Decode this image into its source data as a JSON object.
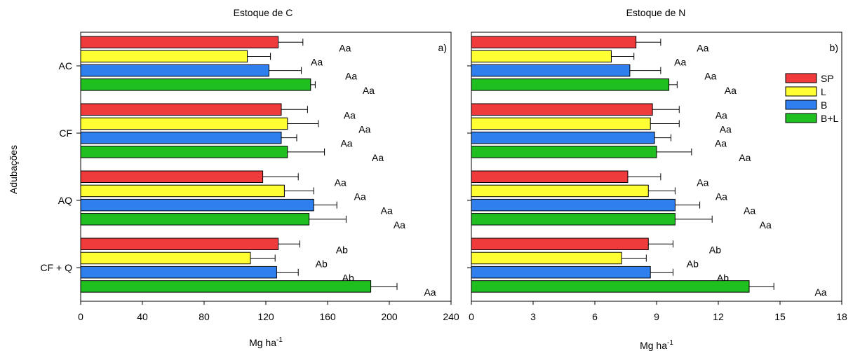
{
  "ylabel": "Adubações",
  "colors": {
    "SP": "#ef3b3b",
    "L": "#ffff33",
    "B": "#2f7fef",
    "B+L": "#1fbf1f"
  },
  "legend": {
    "placement": "top-right of panel b",
    "entries": [
      "SP",
      "L",
      "B",
      "B+L"
    ]
  },
  "chart_data": [
    {
      "type": "bar",
      "orientation": "horizontal",
      "title": "Estoque de C",
      "panel_label": "a)",
      "xlabel_main": "Mg ha",
      "xlabel_sup": "-1",
      "xlim": [
        0,
        240
      ],
      "xticks": [
        "0",
        "40",
        "80",
        "120",
        "160",
        "200",
        "240"
      ],
      "categories": [
        "AC",
        "CF",
        "AQ",
        "CF + Q"
      ],
      "series": [
        {
          "name": "SP",
          "values": [
            128,
            130,
            118,
            128
          ],
          "errors": [
            16,
            17,
            23,
            14
          ],
          "labels": [
            "Aa",
            "Aa",
            "Aa",
            "Ab"
          ]
        },
        {
          "name": "L",
          "values": [
            108,
            134,
            132,
            110
          ],
          "errors": [
            15,
            20,
            19,
            16
          ],
          "labels": [
            "Aa",
            "Aa",
            "Aa",
            "Ab"
          ]
        },
        {
          "name": "B",
          "values": [
            122,
            130,
            151,
            127
          ],
          "errors": [
            21,
            10,
            15,
            14
          ],
          "labels": [
            "Aa",
            "Aa",
            "Aa",
            "Ab"
          ]
        },
        {
          "name": "B+L",
          "values": [
            149,
            134,
            148,
            188
          ],
          "errors": [
            3,
            24,
            24,
            17
          ],
          "labels": [
            "Aa",
            "Aa",
            "Aa",
            "Aa"
          ]
        }
      ]
    },
    {
      "type": "bar",
      "orientation": "horizontal",
      "title": "Estoque de N",
      "panel_label": "b)",
      "xlabel_main": "Mg ha",
      "xlabel_sup": "-1",
      "xlim": [
        0,
        18
      ],
      "xticks": [
        "0",
        "3",
        "6",
        "9",
        "12",
        "15",
        "18"
      ],
      "categories": [
        "AC",
        "CF",
        "AQ",
        "CF + Q"
      ],
      "series": [
        {
          "name": "SP",
          "values": [
            8.0,
            8.8,
            7.6,
            8.6
          ],
          "errors": [
            1.2,
            1.3,
            1.6,
            1.2
          ],
          "labels": [
            "Aa",
            "Aa",
            "Aa",
            "Ab"
          ]
        },
        {
          "name": "L",
          "values": [
            6.8,
            8.7,
            8.6,
            7.3
          ],
          "errors": [
            1.1,
            1.4,
            1.3,
            1.2
          ],
          "labels": [
            "Aa",
            "Aa",
            "Aa",
            "Ab"
          ]
        },
        {
          "name": "B",
          "values": [
            7.7,
            8.9,
            9.9,
            8.7
          ],
          "errors": [
            1.5,
            0.8,
            1.2,
            1.1
          ],
          "labels": [
            "Aa",
            "Aa",
            "Aa",
            "Ab"
          ]
        },
        {
          "name": "B+L",
          "values": [
            9.6,
            9.0,
            9.9,
            13.5
          ],
          "errors": [
            0.4,
            1.7,
            1.8,
            1.2
          ],
          "labels": [
            "Aa",
            "Aa",
            "Aa",
            "Aa"
          ]
        }
      ]
    }
  ]
}
